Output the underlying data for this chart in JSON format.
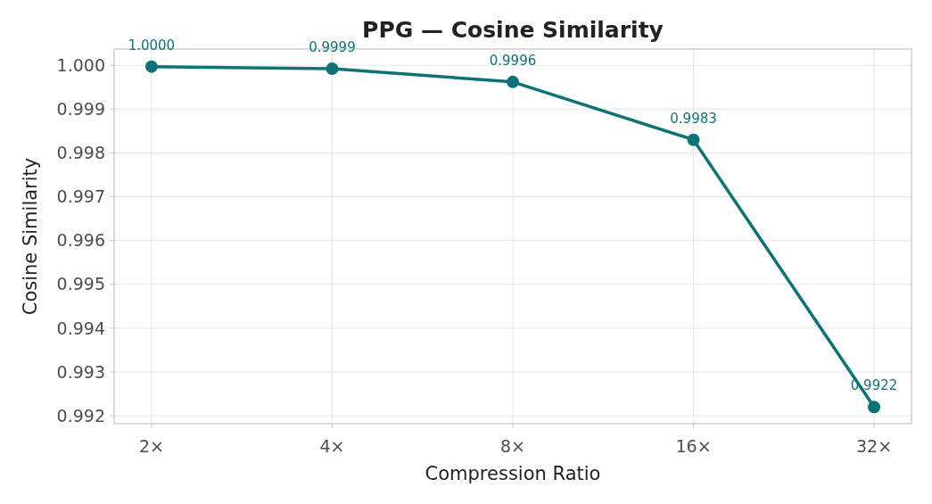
{
  "chart_data": {
    "type": "line",
    "title": "PPG — Cosine Similarity",
    "xlabel": "Compression Ratio",
    "ylabel": "Cosine Similarity",
    "categories": [
      "2×",
      "4×",
      "8×",
      "16×",
      "32×"
    ],
    "series": [
      {
        "color": "#0e7377",
        "values": [
          0.99997,
          0.99992,
          0.99962,
          0.9983,
          0.9922
        ],
        "value_labels": [
          "1.0000",
          "0.9999",
          "0.9996",
          "0.9983",
          "0.9922"
        ]
      }
    ],
    "ylim": [
      0.99182,
      1.00037
    ],
    "yticks": [
      {
        "value": 0.992,
        "label": "0.992"
      },
      {
        "value": 0.993,
        "label": "0.993"
      },
      {
        "value": 0.994,
        "label": "0.994"
      },
      {
        "value": 0.995,
        "label": "0.995"
      },
      {
        "value": 0.996,
        "label": "0.996"
      },
      {
        "value": 0.997,
        "label": "0.997"
      },
      {
        "value": 0.998,
        "label": "0.998"
      },
      {
        "value": 0.999,
        "label": "0.999"
      },
      {
        "value": 1.0,
        "label": "1.000"
      }
    ],
    "grid": true,
    "marker": "circle",
    "line_style": "solid"
  }
}
